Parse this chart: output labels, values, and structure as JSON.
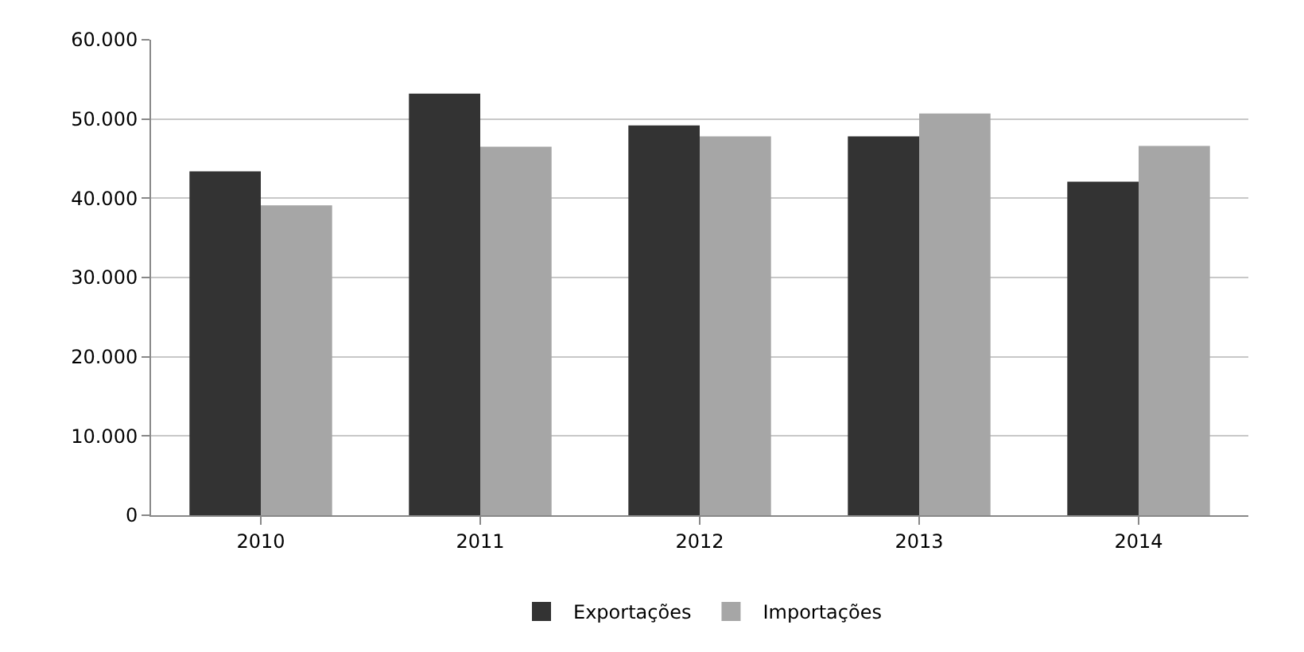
{
  "chart_data": {
    "type": "bar",
    "categories": [
      "2010",
      "2011",
      "2012",
      "2013",
      "2014"
    ],
    "series": [
      {
        "name": "Exportações",
        "color": "#333333",
        "values": [
          43400,
          53200,
          49200,
          47800,
          42100
        ]
      },
      {
        "name": "Importações",
        "color": "#a6a6a6",
        "values": [
          39100,
          46500,
          47800,
          50700,
          46600
        ]
      }
    ],
    "ylim": [
      0,
      60000
    ],
    "yticks": [
      0,
      {
        "value": 10000,
        "label": "10.000"
      },
      {
        "value": 20000,
        "label": "20.000"
      },
      {
        "value": 30000,
        "label": "30.000"
      },
      {
        "value": 40000,
        "label": "40.000"
      },
      {
        "value": 50000,
        "label": "50.000"
      },
      {
        "value": 60000,
        "label": "60.000"
      }
    ],
    "grid": "y",
    "legend": "bottom"
  }
}
